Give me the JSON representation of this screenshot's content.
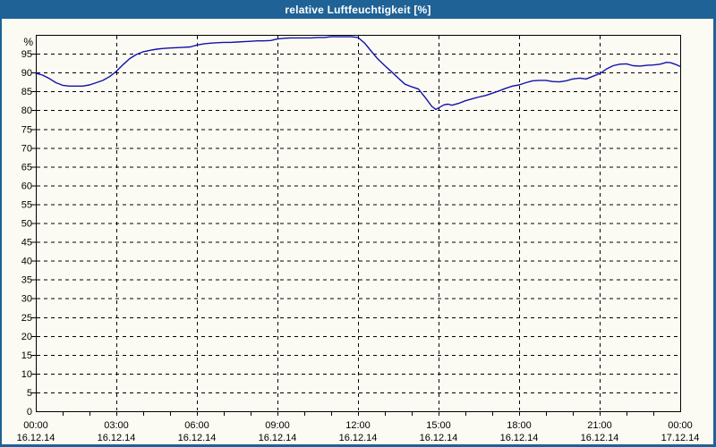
{
  "window": {
    "title": "relative Luftfeuchtigkeit [%]",
    "title_bar_color": "#1f6296",
    "frame_color": "#1f6296",
    "background": "#fbfbf3"
  },
  "chart_data": {
    "type": "line",
    "title": "relative Luftfeuchtigkeit [%]",
    "ylabel": "%",
    "ylim": [
      0,
      100
    ],
    "y_tick_step": 5,
    "x_range_hours": [
      0,
      24
    ],
    "x_major_step_hours": 3,
    "x_minor_step_hours": 1,
    "grid": "dashed-black",
    "legend": "none",
    "line_color": "#1111ad",
    "axis_color": "#000000",
    "text_color": "#000000",
    "y_axis": {
      "unit_label": "%",
      "ticks": [
        {
          "v": 95,
          "label": "95"
        },
        {
          "v": 90,
          "label": "90"
        },
        {
          "v": 85,
          "label": "85"
        },
        {
          "v": 80,
          "label": "80"
        },
        {
          "v": 75,
          "label": "75"
        },
        {
          "v": 70,
          "label": "70"
        },
        {
          "v": 65,
          "label": "65"
        },
        {
          "v": 60,
          "label": "60"
        },
        {
          "v": 55,
          "label": "55"
        },
        {
          "v": 50,
          "label": "50"
        },
        {
          "v": 45,
          "label": "45"
        },
        {
          "v": 40,
          "label": "40"
        },
        {
          "v": 35,
          "label": "35"
        },
        {
          "v": 30,
          "label": "30"
        },
        {
          "v": 25,
          "label": "25"
        },
        {
          "v": 20,
          "label": "20"
        },
        {
          "v": 15,
          "label": "15"
        },
        {
          "v": 10,
          "label": "10"
        },
        {
          "v": 5,
          "label": "5"
        },
        {
          "v": 0,
          "label": "0"
        }
      ]
    },
    "x_axis": {
      "ticks": [
        {
          "hour": 0,
          "time": "00:00",
          "date": "16.12.14"
        },
        {
          "hour": 3,
          "time": "03:00",
          "date": "16.12.14"
        },
        {
          "hour": 6,
          "time": "06:00",
          "date": "16.12.14"
        },
        {
          "hour": 9,
          "time": "09:00",
          "date": "16.12.14"
        },
        {
          "hour": 12,
          "time": "12:00",
          "date": "16.12.14"
        },
        {
          "hour": 15,
          "time": "15:00",
          "date": "16.12.14"
        },
        {
          "hour": 18,
          "time": "18:00",
          "date": "16.12.14"
        },
        {
          "hour": 21,
          "time": "21:00",
          "date": "16.12.14"
        },
        {
          "hour": 24,
          "time": "00:00",
          "date": "17.12.14"
        }
      ]
    },
    "series": [
      {
        "name": "relative Luftfeuchtigkeit [%]",
        "points_hour_value": [
          [
            0,
            89.8
          ],
          [
            0.25,
            89.3
          ],
          [
            0.5,
            88.4
          ],
          [
            0.75,
            87.3
          ],
          [
            1,
            86.6
          ],
          [
            1.25,
            86.4
          ],
          [
            1.5,
            86.4
          ],
          [
            1.75,
            86.4
          ],
          [
            2,
            86.7
          ],
          [
            2.25,
            87.3
          ],
          [
            2.5,
            87.9
          ],
          [
            2.75,
            88.9
          ],
          [
            3,
            90.3
          ],
          [
            3.25,
            92.1
          ],
          [
            3.5,
            93.7
          ],
          [
            3.75,
            94.8
          ],
          [
            4,
            95.5
          ],
          [
            4.25,
            95.9
          ],
          [
            4.5,
            96.2
          ],
          [
            4.75,
            96.4
          ],
          [
            5,
            96.5
          ],
          [
            5.25,
            96.6
          ],
          [
            5.5,
            96.7
          ],
          [
            5.75,
            96.8
          ],
          [
            6,
            97.3
          ],
          [
            6.25,
            97.6
          ],
          [
            6.5,
            97.8
          ],
          [
            6.75,
            97.9
          ],
          [
            7,
            98
          ],
          [
            7.25,
            98
          ],
          [
            7.5,
            98.1
          ],
          [
            7.75,
            98.2
          ],
          [
            8,
            98.3
          ],
          [
            8.25,
            98.4
          ],
          [
            8.5,
            98.4
          ],
          [
            8.75,
            98.5
          ],
          [
            9,
            98.9
          ],
          [
            9.25,
            99.1
          ],
          [
            9.5,
            99.2
          ],
          [
            9.75,
            99.2
          ],
          [
            10,
            99.2
          ],
          [
            10.25,
            99.2
          ],
          [
            10.5,
            99.3
          ],
          [
            10.75,
            99.3
          ],
          [
            11,
            99.5
          ],
          [
            11.25,
            99.5
          ],
          [
            11.5,
            99.5
          ],
          [
            11.75,
            99.5
          ],
          [
            12,
            99.3
          ],
          [
            12.25,
            97.8
          ],
          [
            12.5,
            95.6
          ],
          [
            12.75,
            93.5
          ],
          [
            13,
            91.8
          ],
          [
            13.25,
            90.2
          ],
          [
            13.5,
            88.5
          ],
          [
            13.75,
            86.9
          ],
          [
            14,
            86.2
          ],
          [
            14.25,
            85.6
          ],
          [
            14.5,
            83.4
          ],
          [
            14.75,
            81
          ],
          [
            14.9,
            80.2
          ],
          [
            15,
            80.6
          ],
          [
            15.2,
            81.4
          ],
          [
            15.35,
            81.6
          ],
          [
            15.5,
            81.3
          ],
          [
            15.75,
            81.8
          ],
          [
            16,
            82.5
          ],
          [
            16.25,
            83
          ],
          [
            16.5,
            83.5
          ],
          [
            16.75,
            83.9
          ],
          [
            17,
            84.5
          ],
          [
            17.25,
            85.1
          ],
          [
            17.5,
            85.8
          ],
          [
            17.75,
            86.4
          ],
          [
            18,
            86.7
          ],
          [
            18.25,
            87.3
          ],
          [
            18.5,
            87.8
          ],
          [
            18.75,
            87.9
          ],
          [
            19,
            87.9
          ],
          [
            19.25,
            87.6
          ],
          [
            19.5,
            87.5
          ],
          [
            19.75,
            87.8
          ],
          [
            20,
            88.3
          ],
          [
            20.25,
            88.5
          ],
          [
            20.5,
            88.3
          ],
          [
            20.75,
            89
          ],
          [
            21,
            89.7
          ],
          [
            21.25,
            90.9
          ],
          [
            21.5,
            91.8
          ],
          [
            21.75,
            92.2
          ],
          [
            22,
            92.3
          ],
          [
            22.25,
            91.8
          ],
          [
            22.5,
            91.7
          ],
          [
            22.75,
            91.9
          ],
          [
            23,
            92
          ],
          [
            23.25,
            92.2
          ],
          [
            23.5,
            92.7
          ],
          [
            23.65,
            92.6
          ],
          [
            23.85,
            92.1
          ],
          [
            24,
            91.6
          ]
        ]
      }
    ]
  }
}
